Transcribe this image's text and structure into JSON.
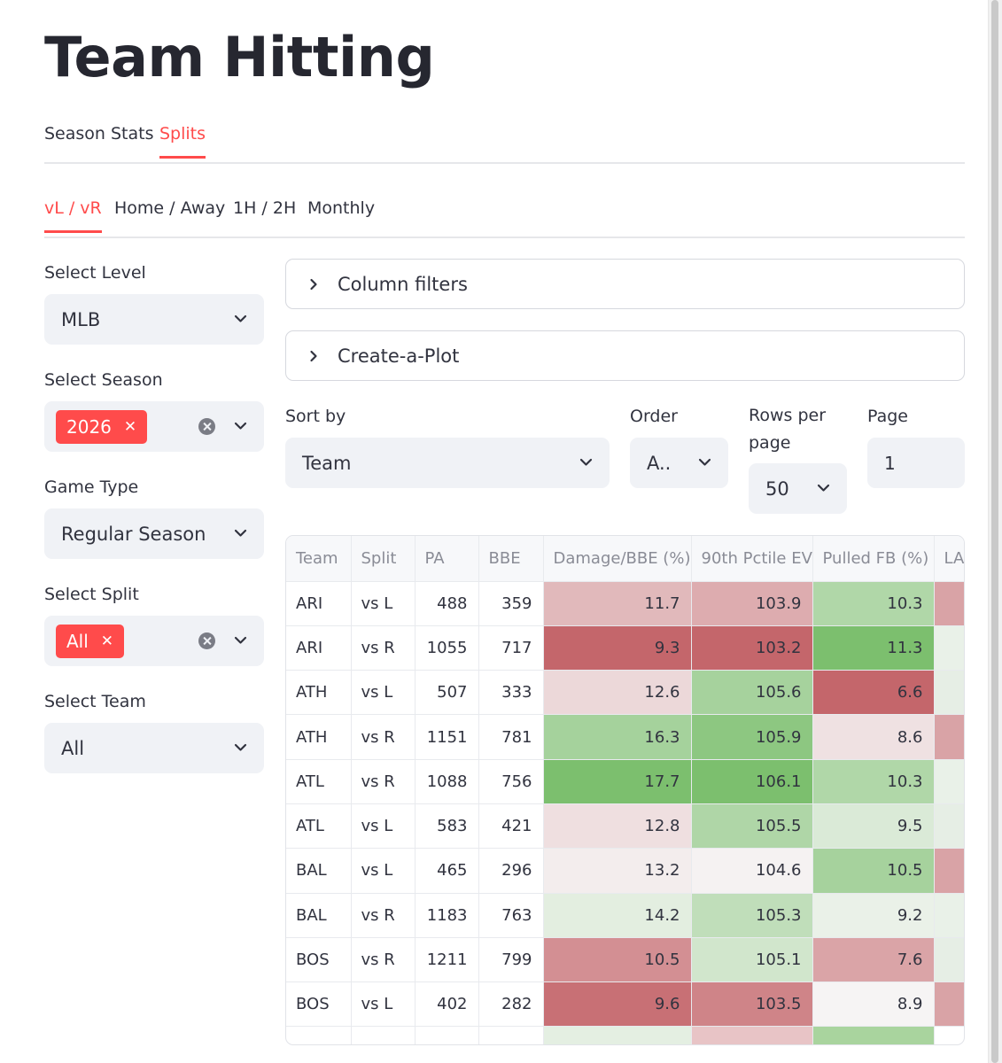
{
  "page": {
    "title": "Team Hitting"
  },
  "main_tabs": [
    {
      "label": "Season Stats",
      "active": false
    },
    {
      "label": "Splits",
      "active": true
    }
  ],
  "sub_tabs": [
    {
      "label": "vL / vR",
      "active": true
    },
    {
      "label": "Home / Away",
      "active": false
    },
    {
      "label": "1H / 2H",
      "active": false
    },
    {
      "label": "Monthly",
      "active": false
    }
  ],
  "sidebar": {
    "level": {
      "label": "Select Level",
      "value": "MLB"
    },
    "season": {
      "label": "Select Season",
      "chip": "2026",
      "chip_close": "✕"
    },
    "game_type": {
      "label": "Game Type",
      "value": "Regular Season"
    },
    "split": {
      "label": "Select Split",
      "chip": "All",
      "chip_close": "✕"
    },
    "team": {
      "label": "Select Team",
      "value": "All"
    }
  },
  "expanders": {
    "column_filters": "Column filters",
    "create_plot": "Create-a-Plot"
  },
  "controls": {
    "sort_by": {
      "label": "Sort by",
      "value": "Team"
    },
    "order": {
      "label": "Order",
      "value": "A.."
    },
    "rows_per_page": {
      "label_line1": "Rows per",
      "label_line2": "page",
      "value": "50"
    },
    "page": {
      "label": "Page",
      "value": "1"
    }
  },
  "colors": {
    "accent": "#ff4b4b",
    "good": "#7cbf6e",
    "bad": "#c4666b",
    "neutral": "#f7f7f7"
  },
  "table": {
    "columns": [
      "Team",
      "Split",
      "PA",
      "BBE",
      "Damage/BBE (%)",
      "90th Pctile EV",
      "Pulled FB (%)",
      "LA"
    ],
    "rows": [
      {
        "team": "ARI",
        "split": "vs L",
        "pa": "488",
        "bbe": "359",
        "damage": "11.7",
        "ev90": "103.9",
        "pulled_fb": "10.3"
      },
      {
        "team": "ARI",
        "split": "vs R",
        "pa": "1055",
        "bbe": "717",
        "damage": "9.3",
        "ev90": "103.2",
        "pulled_fb": "11.3"
      },
      {
        "team": "ATH",
        "split": "vs L",
        "pa": "507",
        "bbe": "333",
        "damage": "12.6",
        "ev90": "105.6",
        "pulled_fb": "6.6"
      },
      {
        "team": "ATH",
        "split": "vs R",
        "pa": "1151",
        "bbe": "781",
        "damage": "16.3",
        "ev90": "105.9",
        "pulled_fb": "8.6"
      },
      {
        "team": "ATL",
        "split": "vs R",
        "pa": "1088",
        "bbe": "756",
        "damage": "17.7",
        "ev90": "106.1",
        "pulled_fb": "10.3"
      },
      {
        "team": "ATL",
        "split": "vs L",
        "pa": "583",
        "bbe": "421",
        "damage": "12.8",
        "ev90": "105.5",
        "pulled_fb": "9.5"
      },
      {
        "team": "BAL",
        "split": "vs L",
        "pa": "465",
        "bbe": "296",
        "damage": "13.2",
        "ev90": "104.6",
        "pulled_fb": "10.5"
      },
      {
        "team": "BAL",
        "split": "vs R",
        "pa": "1183",
        "bbe": "763",
        "damage": "14.2",
        "ev90": "105.3",
        "pulled_fb": "9.2"
      },
      {
        "team": "BOS",
        "split": "vs R",
        "pa": "1211",
        "bbe": "799",
        "damage": "10.5",
        "ev90": "105.1",
        "pulled_fb": "7.6"
      },
      {
        "team": "BOS",
        "split": "vs L",
        "pa": "402",
        "bbe": "282",
        "damage": "9.6",
        "ev90": "103.5",
        "pulled_fb": "8.9"
      }
    ]
  }
}
